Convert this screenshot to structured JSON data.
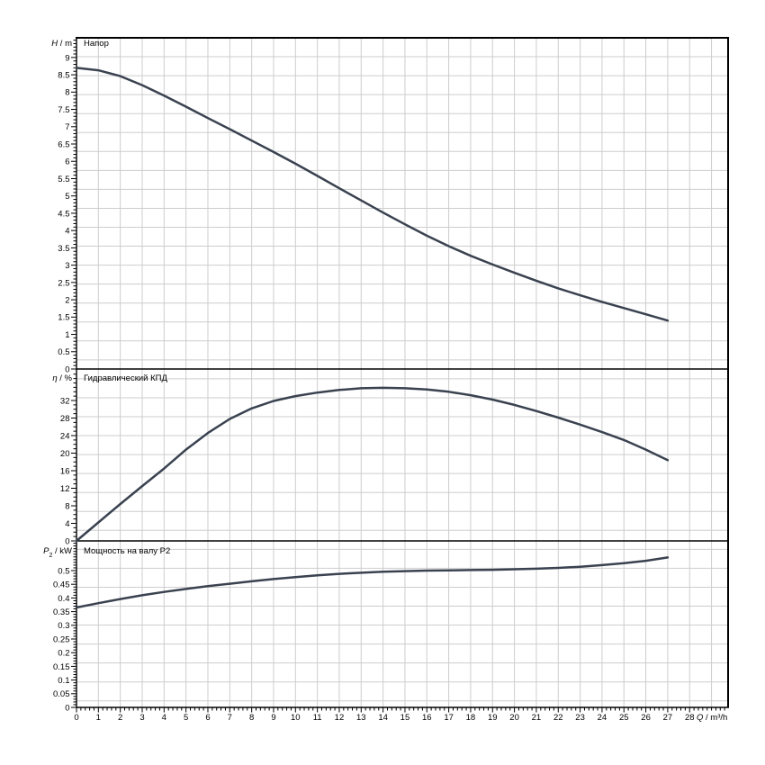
{
  "page": {
    "background": "#ffffff",
    "grid_color": "#cdcdcd",
    "axis_color": "#000000",
    "curve_color": "#3a4250"
  },
  "x_axis": {
    "label_symbol": "Q",
    "label_rest": " / m³/h",
    "tick_labels": [
      "0",
      "1",
      "2",
      "3",
      "4",
      "5",
      "6",
      "7",
      "8",
      "9",
      "10",
      "11",
      "12",
      "13",
      "14",
      "15",
      "16",
      "17",
      "18",
      "19",
      "20",
      "21",
      "22",
      "23",
      "24",
      "25",
      "26",
      "27",
      "28"
    ],
    "tick_values": [
      0,
      1,
      2,
      3,
      4,
      5,
      6,
      7,
      8,
      9,
      10,
      11,
      12,
      13,
      14,
      15,
      16,
      17,
      18,
      19,
      20,
      21,
      22,
      23,
      24,
      25,
      26,
      27,
      28
    ],
    "xlim": [
      0,
      29.8
    ]
  },
  "chart_data": [
    {
      "type": "line",
      "panel": "head",
      "title": "Напор",
      "ylabel_symbol": "H",
      "ylabel_sub": "",
      "ylabel_rest": " / m",
      "ylim": [
        0,
        9.55
      ],
      "grid": true,
      "legend": "none",
      "ytick_values": [
        9,
        8.5,
        8,
        7.5,
        7,
        6.5,
        6,
        5.5,
        5,
        4.5,
        4,
        3.5,
        3,
        2.5,
        2,
        1.5,
        1,
        0.5,
        0
      ],
      "ytick_labels": [
        "9",
        "8.5",
        "8",
        "7.5",
        "7",
        "6.5",
        "6",
        "5.5",
        "5",
        "4.5",
        "4",
        "3.5",
        "3",
        "2.5",
        "2",
        "1.5",
        "1",
        "0.5",
        "0"
      ],
      "x": [
        0,
        1,
        2,
        3,
        4,
        5,
        6,
        7,
        8,
        9,
        10,
        11,
        12,
        13,
        14,
        15,
        16,
        17,
        18,
        19,
        20,
        21,
        22,
        23,
        24,
        25,
        26,
        27
      ],
      "values": [
        8.7,
        8.63,
        8.46,
        8.2,
        7.9,
        7.58,
        7.25,
        6.93,
        6.6,
        6.27,
        5.93,
        5.58,
        5.22,
        4.87,
        4.52,
        4.18,
        3.85,
        3.55,
        3.27,
        3.02,
        2.78,
        2.55,
        2.33,
        2.13,
        1.94,
        1.76,
        1.58,
        1.4
      ]
    },
    {
      "type": "line",
      "panel": "efficiency",
      "title": "Гидравлический КПД",
      "ylabel_symbol": "η",
      "ylabel_sub": "",
      "ylabel_rest": " / %",
      "ylim": [
        0,
        39.2
      ],
      "grid": true,
      "legend": "none",
      "ytick_values": [
        32,
        28,
        24,
        20,
        16,
        12,
        8,
        4,
        0
      ],
      "ytick_labels": [
        "32",
        "28",
        "24",
        "20",
        "16",
        "12",
        "8",
        "4",
        "0"
      ],
      "x": [
        0,
        1,
        2,
        3,
        4,
        5,
        6,
        7,
        8,
        9,
        10,
        11,
        12,
        13,
        14,
        15,
        16,
        17,
        18,
        19,
        20,
        21,
        22,
        23,
        24,
        25,
        26,
        27
      ],
      "values": [
        0,
        4.2,
        8.4,
        12.5,
        16.5,
        20.8,
        24.6,
        27.8,
        30.2,
        31.9,
        33.0,
        33.8,
        34.4,
        34.8,
        34.9,
        34.8,
        34.5,
        34.0,
        33.2,
        32.2,
        31.0,
        29.6,
        28.1,
        26.5,
        24.8,
        23.0,
        20.8,
        18.4
      ]
    },
    {
      "type": "line",
      "panel": "power",
      "title": "Мощность на валу P2",
      "ylabel_symbol": "P",
      "ylabel_sub": "2",
      "ylabel_rest": " / kW",
      "ylim": [
        0,
        0.61
      ],
      "grid": true,
      "legend": "none",
      "ytick_values": [
        0.5,
        0.45,
        0.4,
        0.35,
        0.3,
        0.25,
        0.2,
        0.15,
        0.1,
        0.05,
        0
      ],
      "ytick_labels": [
        "0.5",
        "0.45",
        "0.4",
        "0.35",
        "0.3",
        "0.25",
        "0.2",
        "0.15",
        "0.1",
        "0.05",
        "0"
      ],
      "x": [
        0,
        1,
        2,
        3,
        4,
        5,
        6,
        7,
        8,
        9,
        10,
        11,
        12,
        13,
        14,
        15,
        16,
        17,
        18,
        19,
        20,
        21,
        22,
        23,
        24,
        25,
        26,
        27
      ],
      "values": [
        0.365,
        0.381,
        0.396,
        0.41,
        0.422,
        0.433,
        0.443,
        0.452,
        0.461,
        0.469,
        0.476,
        0.483,
        0.488,
        0.492,
        0.496,
        0.498,
        0.5,
        0.501,
        0.502,
        0.503,
        0.505,
        0.507,
        0.51,
        0.514,
        0.52,
        0.527,
        0.536,
        0.548
      ]
    }
  ]
}
